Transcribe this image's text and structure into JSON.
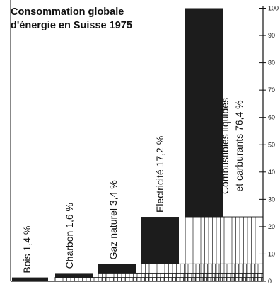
{
  "chart_data": {
    "type": "bar",
    "title_lines": [
      "Consommation globale",
      "d'énergie en Suisse 1975"
    ],
    "categories": [
      "Bois",
      "Charbon",
      "Gaz naturel",
      "Electricité",
      "Combustibles liquides et carburants"
    ],
    "values": [
      1.4,
      1.6,
      3.4,
      17.2,
      76.4
    ],
    "cumulative_base": [
      0,
      1.4,
      3.0,
      6.4,
      23.6
    ],
    "bar_labels": [
      [
        "Bois 1,4 %"
      ],
      [
        "Charbon 1,6 %"
      ],
      [
        "Gaz naturel 3,4 %"
      ],
      [
        "Electricité 17,2 %"
      ],
      [
        "Combustibles liquides",
        "et carburants 76,4 %"
      ]
    ],
    "ylim": [
      0,
      100
    ],
    "yticks": [
      0,
      10,
      20,
      30,
      40,
      50,
      60,
      70,
      80,
      90,
      100
    ],
    "ytick_labels": [
      "0",
      "10",
      "20",
      "30",
      "40",
      "50",
      "60",
      "70",
      "80",
      "90",
      "100"
    ],
    "xlabel": "",
    "ylabel": "",
    "grid": false,
    "legend": "none",
    "colors": {
      "bar_fill": "#1c1c1c",
      "hatch_line": "#1c1c1c",
      "axis": "#111111",
      "background": "#ffffff"
    }
  }
}
